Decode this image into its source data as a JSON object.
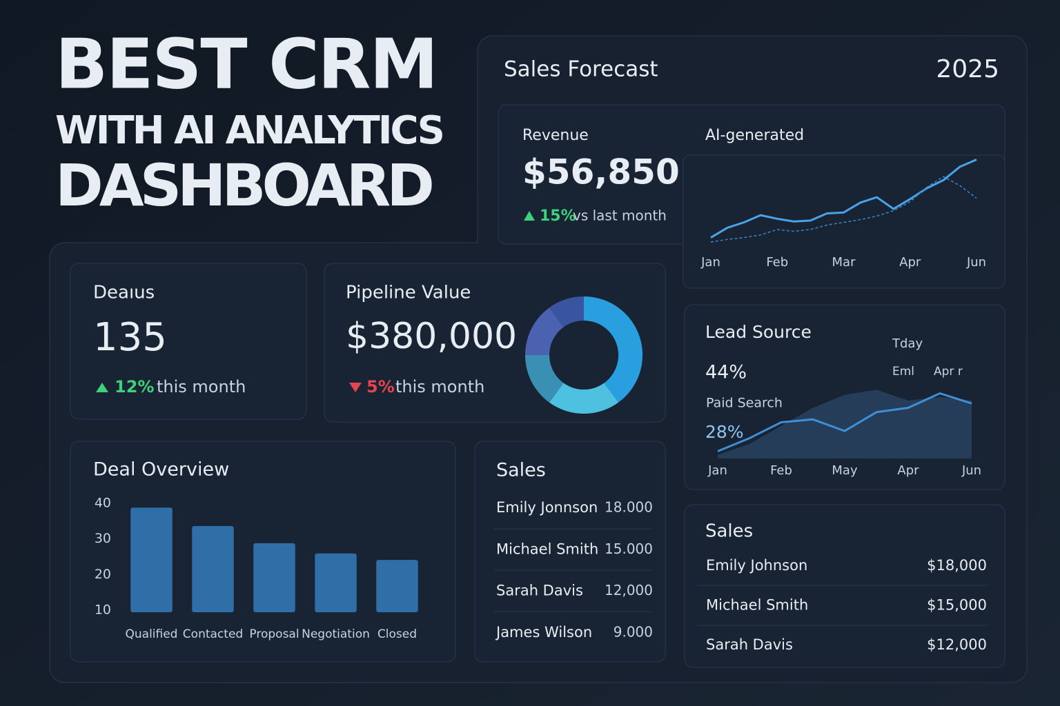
{
  "header": {
    "title_lines": [
      "BEST CRM",
      "WITH AI ANALYTICS",
      "DASHBOARD"
    ]
  },
  "forecast": {
    "title": "Sales Forecast",
    "year": "2025",
    "revenue": {
      "label": "Revenue",
      "value": "$56,850",
      "change": "15%",
      "change_text": "vs last month"
    },
    "chart_data": {
      "type": "line",
      "title": "AI-generated",
      "categories": [
        "Jan",
        null,
        null,
        null,
        "Feb",
        null,
        null,
        null,
        "Mar",
        null,
        null,
        null,
        "Apr",
        null,
        null,
        null,
        "Jun"
      ],
      "series": [
        {
          "color": "#4aa3e8",
          "values": [
            8,
            19,
            25,
            33,
            29,
            26,
            27,
            35,
            36,
            47,
            53,
            40,
            51,
            63,
            72,
            87,
            95
          ]
        },
        {
          "color": "#3b7fc0",
          "dashed": true,
          "values": [
            3,
            6,
            8,
            11,
            17,
            15,
            17,
            22,
            25,
            28,
            32,
            38,
            48,
            64,
            76,
            66,
            52
          ]
        }
      ],
      "ylim": [
        0,
        100
      ]
    }
  },
  "deals": {
    "label": "Deaıus",
    "value": "135",
    "change": "12%",
    "change_text": "this month"
  },
  "pipeline": {
    "label": "Pipeline Value",
    "value": "$380,000",
    "change": "5%",
    "change_text": "this month",
    "chart_data": {
      "type": "pie",
      "donut": true,
      "values": [
        40,
        20,
        15,
        15,
        10
      ],
      "colors": [
        "#2a9fe0",
        "#4ec0e0",
        "#3a8fb5",
        "#4a62b0",
        "#3a55a0"
      ]
    }
  },
  "deal_overview": {
    "chart_data": {
      "type": "bar",
      "title": "Deal Overview",
      "categories": [
        "Qualified",
        "Contacted",
        "Proposal",
        "Negotiation",
        "Closed"
      ],
      "values": [
        38.8,
        33.6,
        28.8,
        25.9,
        24.1
      ],
      "color": "#2f6ea6",
      "ylim": [
        9.4,
        40
      ],
      "yticks": [
        10,
        20,
        30,
        40
      ]
    }
  },
  "sales_table": {
    "title": "Sales",
    "rows": [
      [
        "Emily Jonnson",
        "18.000"
      ],
      [
        "Michael Smith",
        "15.000"
      ],
      [
        "Sarah Davis",
        "12,000"
      ],
      [
        "James Wilson",
        "9.000"
      ]
    ]
  },
  "lead_source": {
    "title": "Lead Source",
    "primary": "44%",
    "primary_label": "Paid Search",
    "secondary": "28%",
    "legend": [
      "Tday",
      "Eml",
      "Apr r"
    ],
    "chart_data": {
      "type": "line",
      "categories": [
        "Jan",
        null,
        "Feb",
        null,
        "May",
        null,
        "Apr",
        null,
        "Jun"
      ],
      "series": [
        {
          "color": "#2a4463",
          "area": true,
          "values": [
            5,
            20,
            45,
            70,
            88,
            95,
            80,
            85,
            80
          ]
        },
        {
          "color": "#3f8fd6",
          "values": [
            10,
            28,
            50,
            54,
            38,
            64,
            70,
            90,
            76
          ]
        }
      ],
      "ylim": [
        0,
        100
      ]
    }
  },
  "sales_list": {
    "title": "Sales",
    "rows": [
      [
        "Emily Johnson",
        "$18,000"
      ],
      [
        "Michael Smith",
        "$15,000"
      ],
      [
        "Sarah Davis",
        "$12,000"
      ]
    ]
  }
}
